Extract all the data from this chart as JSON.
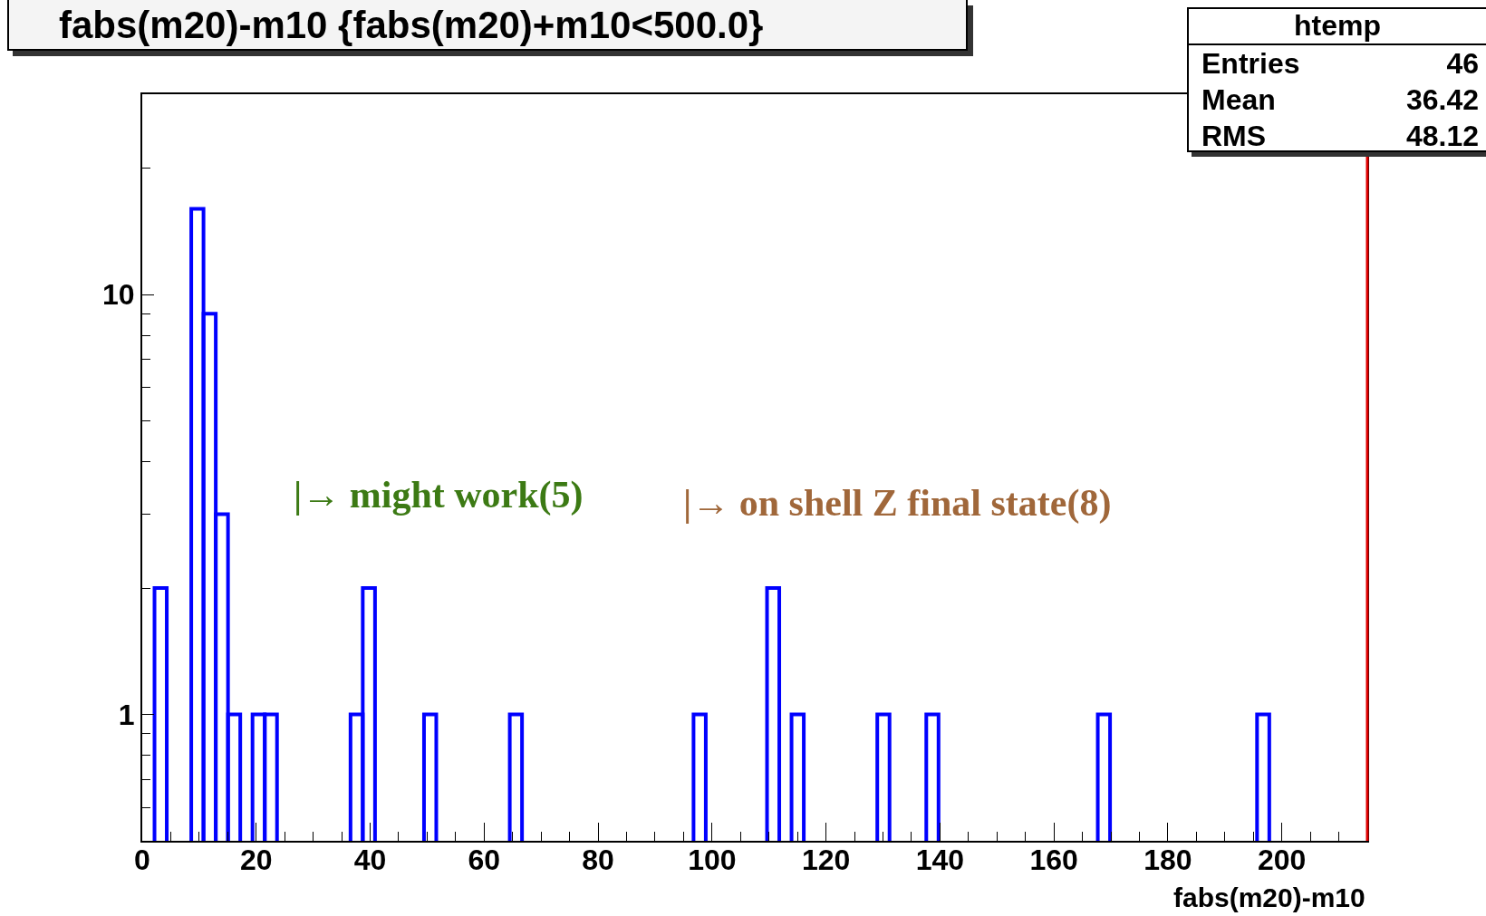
{
  "chart_data": {
    "type": "histogram",
    "title": "fabs(m20)-m10 {fabs(m20)+m10<500.0}",
    "xlabel": "fabs(m20)-m10",
    "bins": [
      0,
      2.15,
      4.3,
      6.45,
      8.6,
      10.75,
      12.9,
      15.05,
      17.2,
      19.35,
      21.5,
      23.65,
      25.8,
      27.95,
      30.1,
      32.25,
      34.4,
      36.55,
      38.7,
      40.85,
      43,
      45.15,
      47.3,
      49.45,
      51.6,
      53.75,
      55.9,
      58.05,
      60.2,
      62.35,
      64.5,
      66.65,
      68.8,
      70.95,
      73.1,
      75.25,
      77.4,
      79.55,
      81.7,
      83.85,
      86,
      88.15,
      90.3,
      92.45,
      94.6,
      96.75,
      98.9,
      101.05,
      103.2,
      105.35,
      107.5,
      109.65,
      111.8,
      113.95,
      116.1,
      118.25,
      120.4,
      122.55,
      124.7,
      126.85,
      129,
      131.15,
      133.3,
      135.45,
      137.6,
      139.75,
      141.9,
      144.05,
      146.2,
      148.35,
      150.5,
      152.65,
      154.8,
      156.95,
      159.1,
      161.25,
      163.4,
      165.55,
      167.7,
      169.85,
      172,
      174.15,
      176.3,
      178.45,
      180.6,
      182.75,
      184.9,
      187.05,
      189.2,
      191.35,
      193.5,
      195.65,
      197.8,
      199.95,
      202.1,
      204.25,
      206.4,
      208.55,
      210.7,
      212.85,
      215
    ],
    "values": [
      null,
      2,
      null,
      null,
      16,
      9,
      3,
      1,
      null,
      1,
      1,
      null,
      null,
      null,
      null,
      null,
      null,
      1,
      2,
      null,
      null,
      null,
      null,
      1,
      null,
      null,
      null,
      null,
      null,
      null,
      1,
      null,
      null,
      null,
      null,
      null,
      null,
      null,
      null,
      null,
      null,
      null,
      null,
      null,
      null,
      1,
      null,
      null,
      null,
      null,
      null,
      2,
      null,
      1,
      null,
      null,
      null,
      null,
      null,
      null,
      1,
      null,
      null,
      null,
      1,
      null,
      null,
      null,
      null,
      null,
      null,
      null,
      null,
      null,
      null,
      null,
      null,
      null,
      1,
      null,
      null,
      null,
      null,
      null,
      null,
      null,
      null,
      null,
      null,
      null,
      null,
      1,
      null,
      null,
      null,
      null,
      null,
      null,
      null,
      null
    ],
    "color": "#0000ff",
    "log": "y",
    "xlim": [
      0,
      215
    ],
    "xticks": [
      0,
      {
        "value": 5,
        "label": null
      },
      {
        "value": 10,
        "label": null
      },
      {
        "value": 15,
        "label": null
      },
      20,
      {
        "value": 25,
        "label": null
      },
      {
        "value": 30,
        "label": null
      },
      {
        "value": 35,
        "label": null
      },
      40,
      {
        "value": 45,
        "label": null
      },
      {
        "value": 50,
        "label": null
      },
      {
        "value": 55,
        "label": null
      },
      60,
      {
        "value": 65,
        "label": null
      },
      {
        "value": 70,
        "label": null
      },
      {
        "value": 75,
        "label": null
      },
      80,
      {
        "value": 85,
        "label": null
      },
      {
        "value": 90,
        "label": null
      },
      {
        "value": 95,
        "label": null
      },
      100,
      {
        "value": 105,
        "label": null
      },
      {
        "value": 110,
        "label": null
      },
      {
        "value": 115,
        "label": null
      },
      120,
      {
        "value": 125,
        "label": null
      },
      {
        "value": 130,
        "label": null
      },
      {
        "value": 135,
        "label": null
      },
      140,
      {
        "value": 145,
        "label": null
      },
      {
        "value": 150,
        "label": null
      },
      {
        "value": 155,
        "label": null
      },
      160,
      {
        "value": 165,
        "label": null
      },
      {
        "value": 170,
        "label": null
      },
      {
        "value": 175,
        "label": null
      },
      180,
      {
        "value": 185,
        "label": null
      },
      {
        "value": 190,
        "label": null
      },
      {
        "value": 195,
        "label": null
      },
      200,
      {
        "value": 205,
        "label": null
      },
      {
        "value": 210,
        "label": null
      }
    ],
    "ylim": [
      0.5,
      30
    ],
    "yticks": [
      {
        "value": 0.6,
        "label": null
      },
      {
        "value": 0.7,
        "label": null
      },
      {
        "value": 0.8,
        "label": null
      },
      {
        "value": 0.9,
        "label": null
      },
      1,
      {
        "value": 2,
        "label": null
      },
      {
        "value": 3,
        "label": null
      },
      {
        "value": 4,
        "label": null
      },
      {
        "value": 5,
        "label": null
      },
      {
        "value": 6,
        "label": null
      },
      {
        "value": 7,
        "label": null
      },
      {
        "value": 8,
        "label": null
      },
      {
        "value": 9,
        "label": null
      },
      10,
      {
        "value": 20,
        "label": null
      }
    ],
    "grid": false,
    "annotations": [
      "|→ might work(5)",
      "|→ on shell Z final state(8)",
      "htemp",
      "Entries",
      "46",
      "Mean",
      "36.42",
      "RMS",
      "48.12"
    ]
  }
}
